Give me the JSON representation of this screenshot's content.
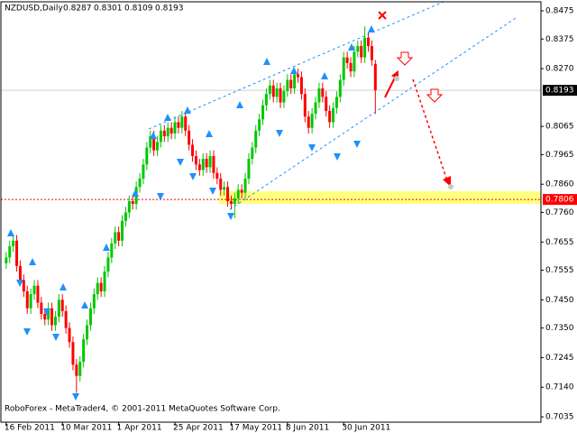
{
  "chart_data": {
    "type": "candlestick",
    "symbol": "NZDUSD,Daily",
    "footer": "RoboForex - MetaTrader4, © 2001-2011 MetaQuotes Software Corp.",
    "up_color": "#00c800",
    "down_color": "#ff0000",
    "xlim": [
      -1.5,
      152.1
    ],
    "xticks": [
      {
        "value": 0,
        "label": "16 Feb 2011"
      },
      {
        "value": 16,
        "label": "10 Mar 2011"
      },
      {
        "value": 32,
        "label": "1 Apr 2011"
      },
      {
        "value": 48,
        "label": "25 Apr 2011"
      },
      {
        "value": 64,
        "label": "17 May 2011"
      },
      {
        "value": 80,
        "label": "8 Jun 2011"
      },
      {
        "value": 96,
        "label": "30 Jun 2011"
      }
    ],
    "ylim": [
      0.7016,
      0.8507
    ],
    "yticks": [
      0.8475,
      0.8375,
      {
        "value": 0.827,
        "label": "0.8270"
      },
      0.8065,
      0.7965,
      {
        "value": 0.786,
        "label": "0.7860"
      },
      {
        "value": 0.776,
        "label": "0.7760"
      },
      0.7655,
      0.7555,
      {
        "value": 0.745,
        "label": "0.7450"
      },
      {
        "value": 0.735,
        "label": "0.7350"
      },
      0.7245,
      {
        "value": 0.714,
        "label": "0.7140"
      },
      0.7035
    ],
    "price_label": 0.8193,
    "support_level": 0.7806,
    "support_zone": [
      0.779,
      0.7835
    ],
    "open": [
      0.758,
      0.76,
      0.764,
      0.766,
      0.757,
      0.752,
      0.748,
      0.742,
      0.747,
      0.75,
      0.744,
      0.74,
      0.738,
      0.742,
      0.736,
      0.739,
      0.745,
      0.741,
      0.735,
      0.73,
      0.722,
      0.718,
      0.723,
      0.731,
      0.736,
      0.742,
      0.747,
      0.751,
      0.748,
      0.755,
      0.76,
      0.765,
      0.769,
      0.766,
      0.773,
      0.776,
      0.78,
      0.779,
      0.785,
      0.788,
      0.793,
      0.799,
      0.803,
      0.798,
      0.801,
      0.805,
      0.803,
      0.806,
      0.804,
      0.808,
      0.806,
      0.81,
      0.805,
      0.8,
      0.796,
      0.793,
      0.791,
      0.795,
      0.792,
      0.796,
      0.79,
      0.788,
      0.784,
      0.785,
      0.78,
      0.779,
      0.781,
      0.784,
      0.783,
      0.788,
      0.795,
      0.799,
      0.805,
      0.809,
      0.814,
      0.818,
      0.821,
      0.817,
      0.82,
      0.815,
      0.819,
      0.823,
      0.82,
      0.825,
      0.824,
      0.818,
      0.81,
      0.806,
      0.811,
      0.815,
      0.82,
      0.817,
      0.812,
      0.808,
      0.813,
      0.817,
      0.823,
      0.831,
      0.829,
      0.826,
      0.833,
      0.835,
      0.831,
      0.838,
      0.835,
      0.8287
    ],
    "high": [
      0.762,
      0.766,
      0.768,
      0.768,
      0.759,
      0.754,
      0.75,
      0.749,
      0.752,
      0.752,
      0.746,
      0.742,
      0.744,
      0.744,
      0.741,
      0.747,
      0.747,
      0.743,
      0.737,
      0.732,
      0.724,
      0.725,
      0.733,
      0.738,
      0.744,
      0.749,
      0.753,
      0.753,
      0.757,
      0.762,
      0.767,
      0.771,
      0.771,
      0.775,
      0.778,
      0.782,
      0.782,
      0.787,
      0.79,
      0.795,
      0.801,
      0.805,
      0.805,
      0.803,
      0.807,
      0.807,
      0.808,
      0.808,
      0.81,
      0.81,
      0.812,
      0.812,
      0.807,
      0.802,
      0.798,
      0.795,
      0.797,
      0.797,
      0.798,
      0.798,
      0.792,
      0.79,
      0.787,
      0.787,
      0.782,
      0.783,
      0.786,
      0.786,
      0.79,
      0.797,
      0.801,
      0.807,
      0.811,
      0.816,
      0.82,
      0.823,
      0.823,
      0.822,
      0.822,
      0.821,
      0.825,
      0.825,
      0.827,
      0.827,
      0.826,
      0.82,
      0.812,
      0.813,
      0.817,
      0.822,
      0.822,
      0.819,
      0.814,
      0.815,
      0.819,
      0.825,
      0.833,
      0.833,
      0.831,
      0.835,
      0.837,
      0.837,
      0.842,
      0.84,
      0.837,
      0.8301
    ],
    "low": [
      0.756,
      0.758,
      0.762,
      0.755,
      0.75,
      0.746,
      0.74,
      0.74,
      0.745,
      0.742,
      0.738,
      0.736,
      0.736,
      0.734,
      0.734,
      0.737,
      0.739,
      0.733,
      0.728,
      0.72,
      0.712,
      0.716,
      0.721,
      0.729,
      0.734,
      0.74,
      0.745,
      0.746,
      0.746,
      0.753,
      0.758,
      0.763,
      0.764,
      0.764,
      0.771,
      0.774,
      0.777,
      0.777,
      0.783,
      0.786,
      0.791,
      0.797,
      0.796,
      0.796,
      0.799,
      0.801,
      0.801,
      0.802,
      0.802,
      0.804,
      0.804,
      0.803,
      0.798,
      0.794,
      0.791,
      0.789,
      0.789,
      0.79,
      0.79,
      0.788,
      0.786,
      0.782,
      0.782,
      0.778,
      0.777,
      0.774,
      0.779,
      0.781,
      0.781,
      0.786,
      0.793,
      0.797,
      0.803,
      0.807,
      0.812,
      0.816,
      0.815,
      0.815,
      0.813,
      0.813,
      0.817,
      0.818,
      0.818,
      0.822,
      0.816,
      0.808,
      0.804,
      0.804,
      0.809,
      0.813,
      0.815,
      0.81,
      0.806,
      0.806,
      0.811,
      0.815,
      0.821,
      0.827,
      0.824,
      0.824,
      0.831,
      0.829,
      0.829,
      0.833,
      0.828,
      0.8109
    ],
    "close": [
      0.76,
      0.764,
      0.766,
      0.757,
      0.752,
      0.748,
      0.742,
      0.747,
      0.75,
      0.744,
      0.74,
      0.738,
      0.742,
      0.736,
      0.739,
      0.745,
      0.741,
      0.735,
      0.73,
      0.722,
      0.718,
      0.723,
      0.731,
      0.736,
      0.742,
      0.747,
      0.751,
      0.748,
      0.755,
      0.76,
      0.765,
      0.769,
      0.766,
      0.773,
      0.776,
      0.78,
      0.779,
      0.785,
      0.788,
      0.793,
      0.799,
      0.803,
      0.798,
      0.801,
      0.805,
      0.803,
      0.806,
      0.804,
      0.808,
      0.806,
      0.81,
      0.805,
      0.8,
      0.796,
      0.793,
      0.791,
      0.795,
      0.792,
      0.796,
      0.79,
      0.788,
      0.784,
      0.785,
      0.78,
      0.779,
      0.781,
      0.784,
      0.783,
      0.788,
      0.795,
      0.799,
      0.805,
      0.809,
      0.814,
      0.818,
      0.821,
      0.817,
      0.82,
      0.815,
      0.819,
      0.823,
      0.82,
      0.825,
      0.824,
      0.818,
      0.81,
      0.806,
      0.811,
      0.815,
      0.82,
      0.817,
      0.812,
      0.808,
      0.813,
      0.817,
      0.823,
      0.831,
      0.829,
      0.826,
      0.833,
      0.835,
      0.831,
      0.838,
      0.835,
      0.83,
      0.8193
    ]
  }
}
